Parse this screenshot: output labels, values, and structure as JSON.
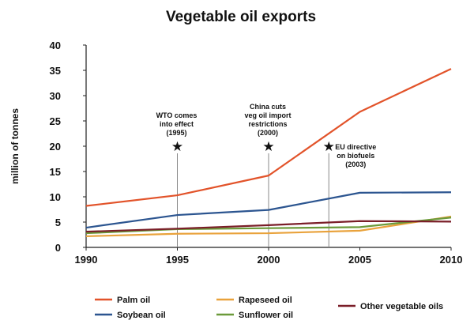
{
  "chart_data": {
    "type": "line",
    "title": "Vegetable oil exports",
    "ylabel": "million of tonnes",
    "xlabel": "",
    "x": [
      1990,
      1995,
      2000,
      2005,
      2010
    ],
    "xlim": [
      1990,
      2010
    ],
    "ylim": [
      0,
      40
    ],
    "x_ticks": [
      "1990",
      "1995",
      "2000",
      "2005",
      "2010"
    ],
    "y_ticks": [
      "0",
      "5",
      "10",
      "15",
      "20",
      "25",
      "30",
      "35",
      "40"
    ],
    "grid": false,
    "legend_position": "bottom",
    "series": [
      {
        "name": "Palm oil",
        "color": "#e2532a",
        "values": [
          8.2,
          10.3,
          14.2,
          26.8,
          35.3
        ]
      },
      {
        "name": "Soybean oil",
        "color": "#2c5590",
        "values": [
          3.9,
          6.4,
          7.4,
          10.8,
          10.9
        ]
      },
      {
        "name": "Rapeseed oil",
        "color": "#e9a23b",
        "values": [
          2.2,
          2.7,
          2.8,
          3.3,
          6.1
        ]
      },
      {
        "name": "Sunflower oil",
        "color": "#6b9a3a",
        "values": [
          2.8,
          3.6,
          3.8,
          4.0,
          5.9
        ]
      },
      {
        "name": "Other vegetable oils",
        "color": "#7a1e28",
        "values": [
          3.1,
          3.7,
          4.4,
          5.2,
          5.1
        ]
      }
    ],
    "annotations": [
      {
        "year": 1995,
        "y": 20,
        "lines": [
          "WTO comes",
          "into effect",
          "(1995)"
        ],
        "marker": "★"
      },
      {
        "year": 2000,
        "y": 20,
        "lines": [
          "China cuts",
          "veg oil import",
          "restrictions",
          "(2000)"
        ],
        "marker": "★"
      },
      {
        "year": 2003.3,
        "y": 20,
        "lines": [
          "EU directive",
          "on biofuels",
          "(2003)"
        ],
        "marker": "★"
      }
    ]
  }
}
